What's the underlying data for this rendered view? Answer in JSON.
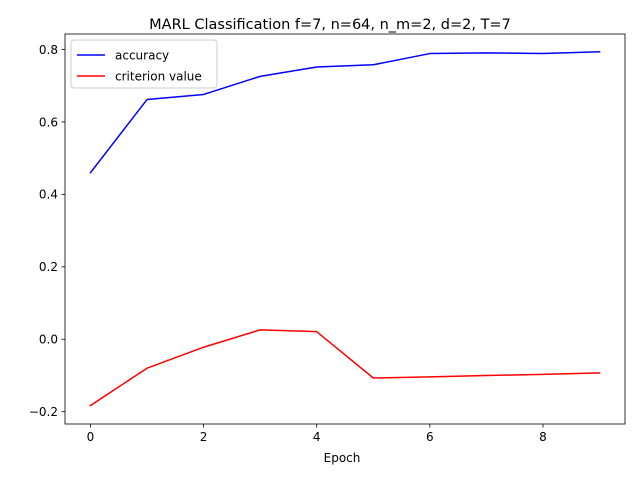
{
  "chart_data": {
    "type": "line",
    "title": "MARL Classification f=7, n=64, n_m=2, d=2, T=7",
    "xlabel": "Epoch",
    "ylabel": "",
    "x": [
      0,
      1,
      2,
      3,
      4,
      5,
      6,
      7,
      8,
      9
    ],
    "xlim": [
      -0.45,
      9.45
    ],
    "ylim": [
      -0.234,
      0.843
    ],
    "xticks": [
      0,
      2,
      4,
      6,
      8
    ],
    "xtick_labels": [
      "0",
      "2",
      "4",
      "6",
      "8"
    ],
    "yticks": [
      -0.2,
      0.0,
      0.2,
      0.4,
      0.6,
      0.8
    ],
    "ytick_labels": [
      "−0.2",
      "0.0",
      "0.2",
      "0.4",
      "0.6",
      "0.8"
    ],
    "grid": false,
    "legend_position": "upper-left",
    "series": [
      {
        "name": "accuracy",
        "color": "#0000ff",
        "values": [
          0.46,
          0.662,
          0.676,
          0.726,
          0.752,
          0.758,
          0.789,
          0.791,
          0.789,
          0.794
        ]
      },
      {
        "name": "criterion value",
        "color": "#ff0000",
        "values": [
          -0.183,
          -0.08,
          -0.022,
          0.026,
          0.021,
          -0.107,
          -0.104,
          -0.1,
          -0.097,
          -0.093
        ]
      }
    ]
  }
}
